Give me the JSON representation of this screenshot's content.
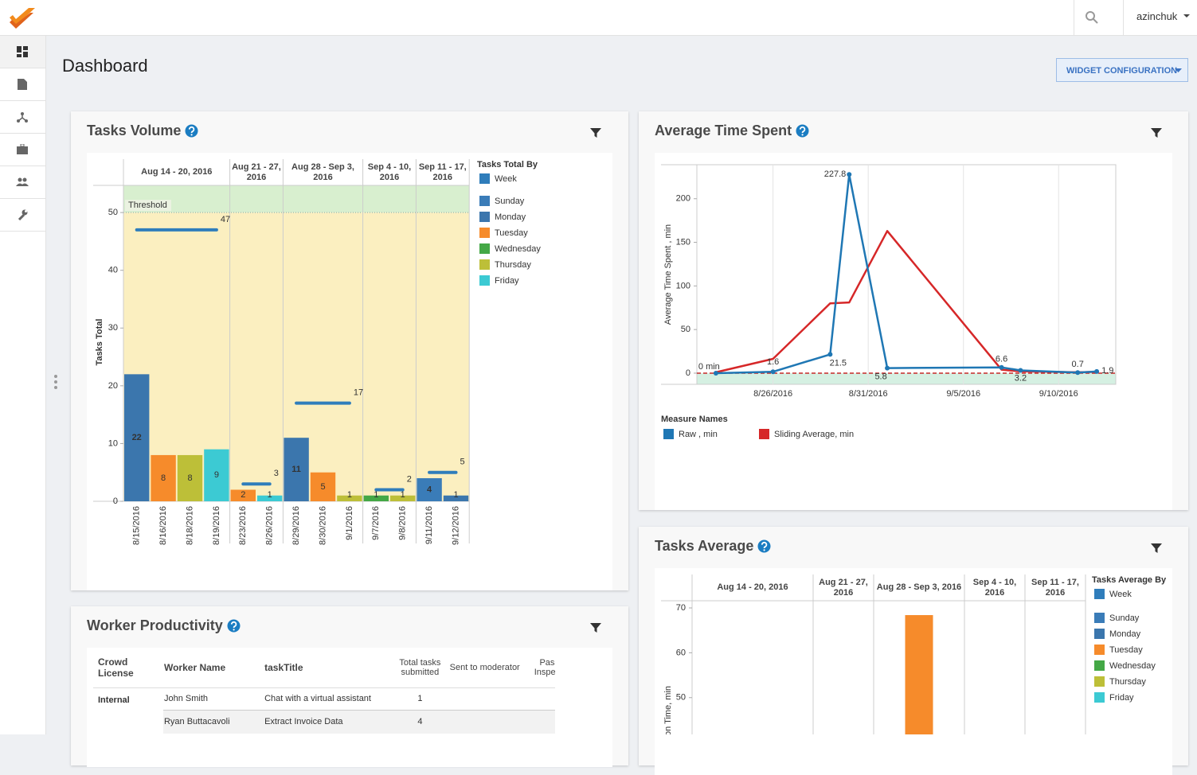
{
  "header": {
    "user": "azinchuk"
  },
  "page": {
    "title": "Dashboard",
    "button": "WIDGET CONFIGURATION"
  },
  "tasks_volume": {
    "type": "bar",
    "title": "Tasks Volume",
    "y_label": "Tasks Total",
    "ylim": [
      0,
      54.7
    ],
    "yticks": [
      0,
      10,
      20,
      30,
      40,
      50
    ],
    "threshold": {
      "label": "Threshold",
      "value": 50
    },
    "weeks": [
      {
        "label": "Aug 14 - 20, 2016",
        "total": 47,
        "bars": [
          {
            "date": "8/15/2016",
            "day": "Monday",
            "value": 22
          },
          {
            "date": "8/16/2016",
            "day": "Tuesday",
            "value": 8
          },
          {
            "date": "8/18/2016",
            "day": "Thursday",
            "value": 8
          },
          {
            "date": "8/19/2016",
            "day": "Friday",
            "value": 9
          }
        ]
      },
      {
        "label": "Aug 21 - 27, 2016",
        "total": 3,
        "bars": [
          {
            "date": "8/23/2016",
            "day": "Tuesday",
            "value": 2
          },
          {
            "date": "8/26/2016",
            "day": "Friday",
            "value": 1
          }
        ]
      },
      {
        "label": "Aug 28 - Sep 3, 2016",
        "total": 17,
        "bars": [
          {
            "date": "8/29/2016",
            "day": "Monday",
            "value": 11
          },
          {
            "date": "8/30/2016",
            "day": "Tuesday",
            "value": 5
          },
          {
            "date": "9/1/2016",
            "day": "Thursday",
            "value": 1
          }
        ]
      },
      {
        "label": "Sep 4 - 10, 2016",
        "total": 2,
        "bars": [
          {
            "date": "9/7/2016",
            "day": "Wednesday",
            "value": 1
          },
          {
            "date": "9/8/2016",
            "day": "Thursday",
            "value": 1
          }
        ]
      },
      {
        "label": "Sep 11 - 17, 2016",
        "total": 5,
        "bars": [
          {
            "date": "9/11/2016",
            "day": "Sunday",
            "value": 4
          },
          {
            "date": "9/12/2016",
            "day": "Monday",
            "value": 1
          }
        ]
      }
    ],
    "legend": {
      "title": "Tasks Total By",
      "items": [
        {
          "name": "Week",
          "color": "#2f7dbb"
        },
        {
          "name": "Sunday",
          "color": "#3a7cb8"
        },
        {
          "name": "Monday",
          "color": "#3b76ad"
        },
        {
          "name": "Tuesday",
          "color": "#f68b2b"
        },
        {
          "name": "Wednesday",
          "color": "#44a846"
        },
        {
          "name": "Thursday",
          "color": "#bdbf38"
        },
        {
          "name": "Friday",
          "color": "#3ccad3"
        }
      ]
    }
  },
  "avg_time": {
    "type": "line",
    "title": "Average Time Spent",
    "y_label": "Average Time Spent , min",
    "ylim": [
      -12.8,
      239
    ],
    "yticks": [
      0,
      50,
      100,
      150,
      200
    ],
    "xlim": [
      "8/22/2016",
      "9/13/2016"
    ],
    "xticks": [
      "8/26/2016",
      "8/31/2016",
      "9/5/2016",
      "9/10/2016"
    ],
    "threshold": 0,
    "legend_title": "Measure Names",
    "x": [
      "8/23/2016",
      "8/26/2016",
      "8/29/2016",
      "8/30/2016",
      "9/1/2016",
      "9/7/2016",
      "9/8/2016",
      "9/11/2016",
      "9/12/2016"
    ],
    "series": [
      {
        "name": "Raw , min",
        "color": "#1f77b4",
        "values": [
          0,
          1.6,
          21.5,
          227.8,
          5.8,
          6.6,
          3.2,
          0.7,
          1.9
        ],
        "value_labels": [
          "0 min",
          "1.6",
          "21.5",
          "227.8",
          "5.8",
          "6.6",
          "3.2",
          "0.7",
          "1.9"
        ]
      },
      {
        "name": "Sliding Average, min",
        "color": "#d62728",
        "values": [
          1,
          16.4,
          80,
          81,
          163,
          4,
          2,
          1,
          1.5
        ]
      }
    ]
  },
  "tasks_average": {
    "type": "bar",
    "title": "Tasks Average",
    "y_label": "on Time, min",
    "ylim": [
      41.8,
      71.6
    ],
    "yticks": [
      50,
      60,
      70
    ],
    "weeks": [
      "Aug 14 - 20, 2016",
      "Aug 21 - 27, 2016",
      "Aug 28 - Sep 3, 2016",
      "Sep 4 - 10, 2016",
      "Sep 11 - 17, 2016"
    ],
    "bars": [
      {
        "day": "Tuesday",
        "value": 68.4
      }
    ],
    "legend": {
      "title": "Tasks Average By",
      "items": [
        {
          "name": "Week",
          "color": "#2f7dbb"
        },
        {
          "name": "Sunday",
          "color": "#3a7cb8"
        },
        {
          "name": "Monday",
          "color": "#3b76ad"
        },
        {
          "name": "Tuesday",
          "color": "#f68b2b"
        },
        {
          "name": "Wednesday",
          "color": "#44a846"
        },
        {
          "name": "Thursday",
          "color": "#bdbf38"
        },
        {
          "name": "Friday",
          "color": "#3ccad3"
        }
      ]
    }
  },
  "worker_productivity": {
    "title": "Worker Productivity",
    "columns": [
      "Crowd License",
      "Worker Name",
      "taskTitle",
      "Total tasks submitted",
      "Sent to moderator",
      "Passed Inspection"
    ],
    "groups": [
      {
        "license": "Internal",
        "rows": [
          [
            "John  Smith",
            "Chat with a virtual assistant",
            1
          ],
          [
            "Ryan Buttacavoli",
            "Extract Invoice Data",
            4
          ]
        ]
      }
    ]
  }
}
